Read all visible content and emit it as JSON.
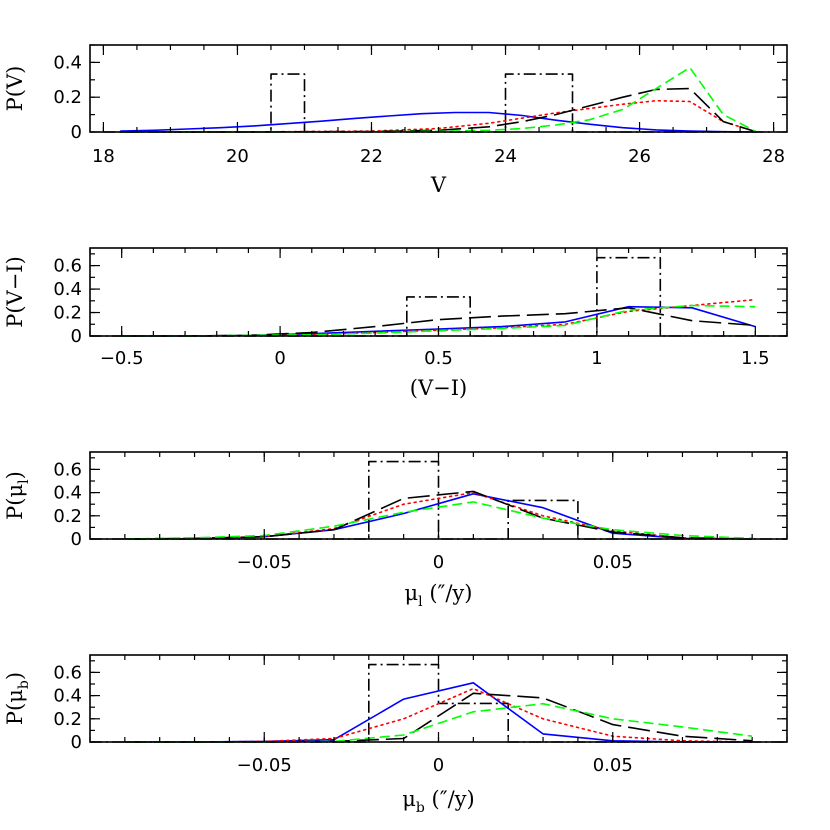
{
  "chart_data": [
    {
      "type": "line",
      "xlabel": "V",
      "ylabel": "P(V)",
      "xlim": [
        17.8,
        28.2
      ],
      "ylim": [
        0,
        0.5
      ],
      "xticks": [
        18,
        20,
        22,
        24,
        26,
        28
      ],
      "xtick_labels": [
        "18",
        "20",
        "22",
        "24",
        "26",
        "28"
      ],
      "xminor_step": 0.5,
      "yticks": [
        0,
        0.2,
        0.4
      ],
      "ytick_labels": [
        "0",
        "0.2",
        "0.4"
      ],
      "yminor_step": 0.1,
      "series": [
        {
          "style": "dashdot",
          "color": "#000000",
          "x": [
            18,
            20.5,
            20.5,
            21,
            21,
            24,
            24,
            25,
            25,
            28
          ],
          "y": [
            0,
            0,
            0.333,
            0.333,
            0,
            0,
            0.333,
            0.333,
            0,
            0
          ]
        },
        {
          "style": "solid",
          "color": "#0000ff",
          "x": [
            18.25,
            18.75,
            19.25,
            19.75,
            20.25,
            20.75,
            21.25,
            21.75,
            22.25,
            22.75,
            23.25,
            23.75,
            24.25,
            24.75,
            25.25,
            25.75,
            26.25,
            26.75,
            27.25,
            27.75
          ],
          "y": [
            0.005,
            0.01,
            0.017,
            0.025,
            0.035,
            0.048,
            0.062,
            0.078,
            0.092,
            0.105,
            0.112,
            0.112,
            0.095,
            0.068,
            0.045,
            0.025,
            0.012,
            0.005,
            0.002,
            0.0
          ]
        },
        {
          "style": "dotted",
          "color": "#ff0000",
          "x": [
            18.25,
            20,
            22,
            23,
            23.75,
            24.25,
            24.75,
            25.25,
            25.75,
            26.25,
            26.75,
            27.25,
            27.75
          ],
          "y": [
            0.0,
            0.0,
            0.005,
            0.02,
            0.05,
            0.08,
            0.11,
            0.135,
            0.16,
            0.18,
            0.175,
            0.06,
            0.0
          ]
        },
        {
          "style": "longdash",
          "color": "#000000",
          "x": [
            18.25,
            20,
            22,
            23,
            23.75,
            24.25,
            24.75,
            25.25,
            25.75,
            26.25,
            26.75,
            27.25,
            27.75
          ],
          "y": [
            0.0,
            0.0,
            0.003,
            0.01,
            0.03,
            0.06,
            0.1,
            0.15,
            0.2,
            0.245,
            0.25,
            0.06,
            0.0
          ]
        },
        {
          "style": "dashed",
          "color": "#00ff00",
          "x": [
            18.25,
            20,
            22,
            23,
            23.75,
            24.25,
            24.75,
            25.25,
            25.75,
            26.25,
            26.75,
            27.25,
            27.75
          ],
          "y": [
            0.0,
            0.0,
            0.001,
            0.004,
            0.01,
            0.02,
            0.04,
            0.07,
            0.13,
            0.25,
            0.37,
            0.1,
            0.0
          ]
        }
      ]
    },
    {
      "type": "line",
      "xlabel": "(V−I)",
      "ylabel": "P(V−I)",
      "xlim": [
        -0.6,
        1.6
      ],
      "ylim": [
        0,
        0.75
      ],
      "xticks": [
        -0.5,
        0,
        0.5,
        1,
        1.5
      ],
      "xtick_labels": [
        "−0.5",
        "0",
        "0.5",
        "1",
        "1.5"
      ],
      "xminor_step": 0.1,
      "yticks": [
        0,
        0.2,
        0.4,
        0.6
      ],
      "ytick_labels": [
        "0",
        "0.2",
        "0.4",
        "0.6"
      ],
      "yminor_step": 0.1,
      "series": [
        {
          "style": "dashdot",
          "color": "#000000",
          "x": [
            -0.6,
            0.4,
            0.4,
            0.6,
            0.6,
            1.0,
            1.0,
            1.2,
            1.2,
            1.6
          ],
          "y": [
            0,
            0,
            0.333,
            0.333,
            0,
            0,
            0.667,
            0.667,
            0,
            0
          ]
        },
        {
          "style": "solid",
          "color": "#0000ff",
          "x": [
            -0.5,
            -0.3,
            -0.1,
            0.1,
            0.3,
            0.5,
            0.7,
            0.9,
            1.1,
            1.3,
            1.5
          ],
          "y": [
            0.0,
            0.0,
            0.005,
            0.02,
            0.04,
            0.06,
            0.08,
            0.12,
            0.25,
            0.24,
            0.08
          ]
        },
        {
          "style": "dotted",
          "color": "#ff0000",
          "x": [
            -0.5,
            -0.3,
            -0.1,
            0.1,
            0.3,
            0.5,
            0.7,
            0.9,
            1.1,
            1.3,
            1.5
          ],
          "y": [
            0.0,
            0.0,
            0.005,
            0.01,
            0.03,
            0.05,
            0.07,
            0.1,
            0.21,
            0.26,
            0.31
          ]
        },
        {
          "style": "longdash",
          "color": "#000000",
          "x": [
            -0.5,
            -0.3,
            -0.1,
            0.1,
            0.3,
            0.5,
            0.7,
            0.9,
            1.1,
            1.3,
            1.5
          ],
          "y": [
            0.0,
            0.0,
            0.005,
            0.03,
            0.08,
            0.14,
            0.17,
            0.19,
            0.24,
            0.13,
            0.09
          ]
        },
        {
          "style": "dashed",
          "color": "#00ff00",
          "x": [
            -0.5,
            -0.3,
            -0.1,
            0.1,
            0.3,
            0.5,
            0.7,
            0.9,
            1.1,
            1.3,
            1.5
          ],
          "y": [
            0.0,
            0.0,
            0.005,
            0.01,
            0.025,
            0.045,
            0.065,
            0.09,
            0.22,
            0.26,
            0.25
          ]
        }
      ]
    },
    {
      "type": "line",
      "xlabel": "μ",
      "xlabel_sub": "l",
      "xlabel_unit": " (″/y)",
      "ylabel": "P(μ",
      "ylabel_sub": "l",
      "ylabel_end": ")",
      "xlim": [
        -0.1,
        0.1
      ],
      "ylim": [
        0,
        0.75
      ],
      "xticks": [
        -0.05,
        0,
        0.05
      ],
      "xtick_labels": [
        "−0.05",
        "0",
        "0.05"
      ],
      "xminor_step": 0.01,
      "yticks": [
        0,
        0.2,
        0.4,
        0.6
      ],
      "ytick_labels": [
        "0",
        "0.2",
        "0.4",
        "0.6"
      ],
      "yminor_step": 0.1,
      "series": [
        {
          "style": "dashdot",
          "color": "#000000",
          "x": [
            -0.1,
            -0.02,
            -0.02,
            0,
            0,
            0.02,
            0.02,
            0.04,
            0.04,
            0.1
          ],
          "y": [
            0,
            0,
            0.667,
            0.667,
            0,
            0,
            0.333,
            0.333,
            0,
            0
          ]
        },
        {
          "style": "solid",
          "color": "#0000ff",
          "x": [
            -0.09,
            -0.07,
            -0.05,
            -0.03,
            -0.01,
            0.01,
            0.03,
            0.05,
            0.07,
            0.09
          ],
          "y": [
            0.0,
            0.0,
            0.02,
            0.08,
            0.22,
            0.39,
            0.27,
            0.05,
            0.005,
            0.0
          ]
        },
        {
          "style": "dotted",
          "color": "#ff0000",
          "x": [
            -0.09,
            -0.07,
            -0.05,
            -0.03,
            -0.01,
            0.01,
            0.03,
            0.05,
            0.07,
            0.09
          ],
          "y": [
            0.0,
            0.005,
            0.02,
            0.09,
            0.3,
            0.4,
            0.2,
            0.07,
            0.01,
            0.0
          ]
        },
        {
          "style": "longdash",
          "color": "#000000",
          "x": [
            -0.09,
            -0.07,
            -0.05,
            -0.03,
            -0.01,
            0.01,
            0.03,
            0.05,
            0.07,
            0.09
          ],
          "y": [
            0.0,
            0.005,
            0.02,
            0.08,
            0.35,
            0.41,
            0.18,
            0.06,
            0.01,
            0.0
          ]
        },
        {
          "style": "dashed",
          "color": "#00ff00",
          "x": [
            -0.09,
            -0.07,
            -0.05,
            -0.03,
            -0.01,
            0.01,
            0.03,
            0.05,
            0.07,
            0.09
          ],
          "y": [
            0.0,
            0.01,
            0.03,
            0.11,
            0.23,
            0.32,
            0.18,
            0.08,
            0.03,
            0.005
          ]
        }
      ]
    },
    {
      "type": "line",
      "xlabel": "μ",
      "xlabel_sub": "b",
      "xlabel_unit": " (″/y)",
      "ylabel": "P(μ",
      "ylabel_sub": "b",
      "ylabel_end": ")",
      "xlim": [
        -0.1,
        0.1
      ],
      "ylim": [
        0,
        0.75
      ],
      "xticks": [
        -0.05,
        0,
        0.05
      ],
      "xtick_labels": [
        "−0.05",
        "0",
        "0.05"
      ],
      "xminor_step": 0.01,
      "yticks": [
        0,
        0.2,
        0.4,
        0.6
      ],
      "ytick_labels": [
        "0",
        "0.2",
        "0.4",
        "0.6"
      ],
      "yminor_step": 0.1,
      "series": [
        {
          "style": "dashdot",
          "color": "#000000",
          "x": [
            -0.1,
            -0.02,
            -0.02,
            0,
            0,
            0.02,
            0.02,
            0.1
          ],
          "y": [
            0,
            0,
            0.667,
            0.667,
            0.333,
            0.333,
            0,
            0
          ]
        },
        {
          "style": "solid",
          "color": "#0000ff",
          "x": [
            -0.09,
            -0.07,
            -0.05,
            -0.03,
            -0.01,
            0.01,
            0.03,
            0.05,
            0.07,
            0.09
          ],
          "y": [
            0.0,
            0.0,
            0.005,
            0.02,
            0.37,
            0.51,
            0.07,
            0.01,
            0.0,
            0.0
          ]
        },
        {
          "style": "dotted",
          "color": "#ff0000",
          "x": [
            -0.09,
            -0.07,
            -0.05,
            -0.03,
            -0.01,
            0.01,
            0.03,
            0.05,
            0.07,
            0.09
          ],
          "y": [
            0.0,
            0.0,
            0.005,
            0.03,
            0.2,
            0.46,
            0.2,
            0.05,
            0.01,
            0.0
          ]
        },
        {
          "style": "longdash",
          "color": "#000000",
          "x": [
            -0.09,
            -0.07,
            -0.05,
            -0.03,
            -0.01,
            0.01,
            0.03,
            0.05,
            0.07,
            0.09
          ],
          "y": [
            0.0,
            0.0,
            0.0,
            0.005,
            0.03,
            0.42,
            0.38,
            0.15,
            0.05,
            0.01
          ]
        },
        {
          "style": "dashed",
          "color": "#00ff00",
          "x": [
            -0.09,
            -0.07,
            -0.05,
            -0.03,
            -0.01,
            0.01,
            0.03,
            0.05,
            0.07,
            0.09
          ],
          "y": [
            0.0,
            0.0,
            0.0,
            0.005,
            0.06,
            0.26,
            0.33,
            0.2,
            0.13,
            0.05
          ]
        }
      ]
    }
  ]
}
